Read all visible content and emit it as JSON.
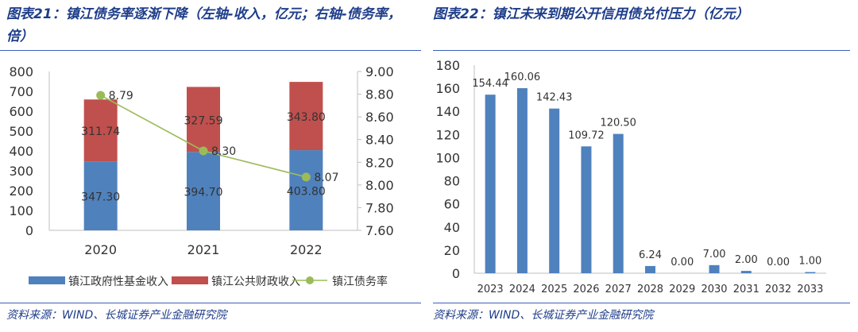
{
  "left": {
    "title": "图表21：镇江债务率逐渐下降（左轴-收入，亿元；右轴-债务率，倍）",
    "source": "资料来源：WIND、长城证券产业金融研究院",
    "chart_data": {
      "type": "bar",
      "stacked": true,
      "categories": [
        "2020",
        "2021",
        "2022"
      ],
      "series": [
        {
          "name": "镇江政府性基金收入",
          "type": "bar",
          "axis": "left",
          "color": "#4f81bd",
          "values": [
            347.3,
            394.7,
            403.8
          ],
          "labels": [
            "347.30",
            "394.70",
            "403.80"
          ]
        },
        {
          "name": "镇江公共财政收入",
          "type": "bar",
          "axis": "left",
          "color": "#c0504d",
          "values": [
            311.74,
            327.59,
            343.8
          ],
          "labels": [
            "311.74",
            "327.59",
            "343.80"
          ]
        },
        {
          "name": "镇江债务率",
          "type": "line",
          "axis": "right",
          "color": "#9bbb59",
          "values": [
            8.79,
            8.3,
            8.07
          ],
          "labels": [
            "8.79",
            "8.30",
            "8.07"
          ]
        }
      ],
      "ylim": [
        0,
        800
      ],
      "yticks": [
        "0",
        "100",
        "200",
        "300",
        "400",
        "500",
        "600",
        "700",
        "800"
      ],
      "y2lim": [
        7.6,
        9.0
      ],
      "y2ticks": [
        "7.60",
        "7.80",
        "8.00",
        "8.20",
        "8.40",
        "8.60",
        "8.80",
        "9.00"
      ],
      "legend_position": "bottom"
    }
  },
  "right": {
    "title": "图表22：镇江未来到期公开信用债兑付压力（亿元）",
    "source": "资料来源：WIND、长城证券产业金融研究院",
    "chart_data": {
      "type": "bar",
      "categories": [
        "2023",
        "2024",
        "2025",
        "2026",
        "2027",
        "2028",
        "2029",
        "2030",
        "2031",
        "2032",
        "2033"
      ],
      "values": [
        154.44,
        160.06,
        142.43,
        109.72,
        120.5,
        6.24,
        0.0,
        7.0,
        2.0,
        0.0,
        1.0
      ],
      "labels": [
        "154.44",
        "160.06",
        "142.43",
        "109.72",
        "120.50",
        "6.24",
        "0.00",
        "7.00",
        "2.00",
        "0.00",
        "1.00"
      ],
      "ylim": [
        0,
        180
      ],
      "yticks": [
        "0",
        "20",
        "40",
        "60",
        "80",
        "100",
        "120",
        "140",
        "160",
        "180"
      ],
      "color": "#4f81bd"
    }
  }
}
